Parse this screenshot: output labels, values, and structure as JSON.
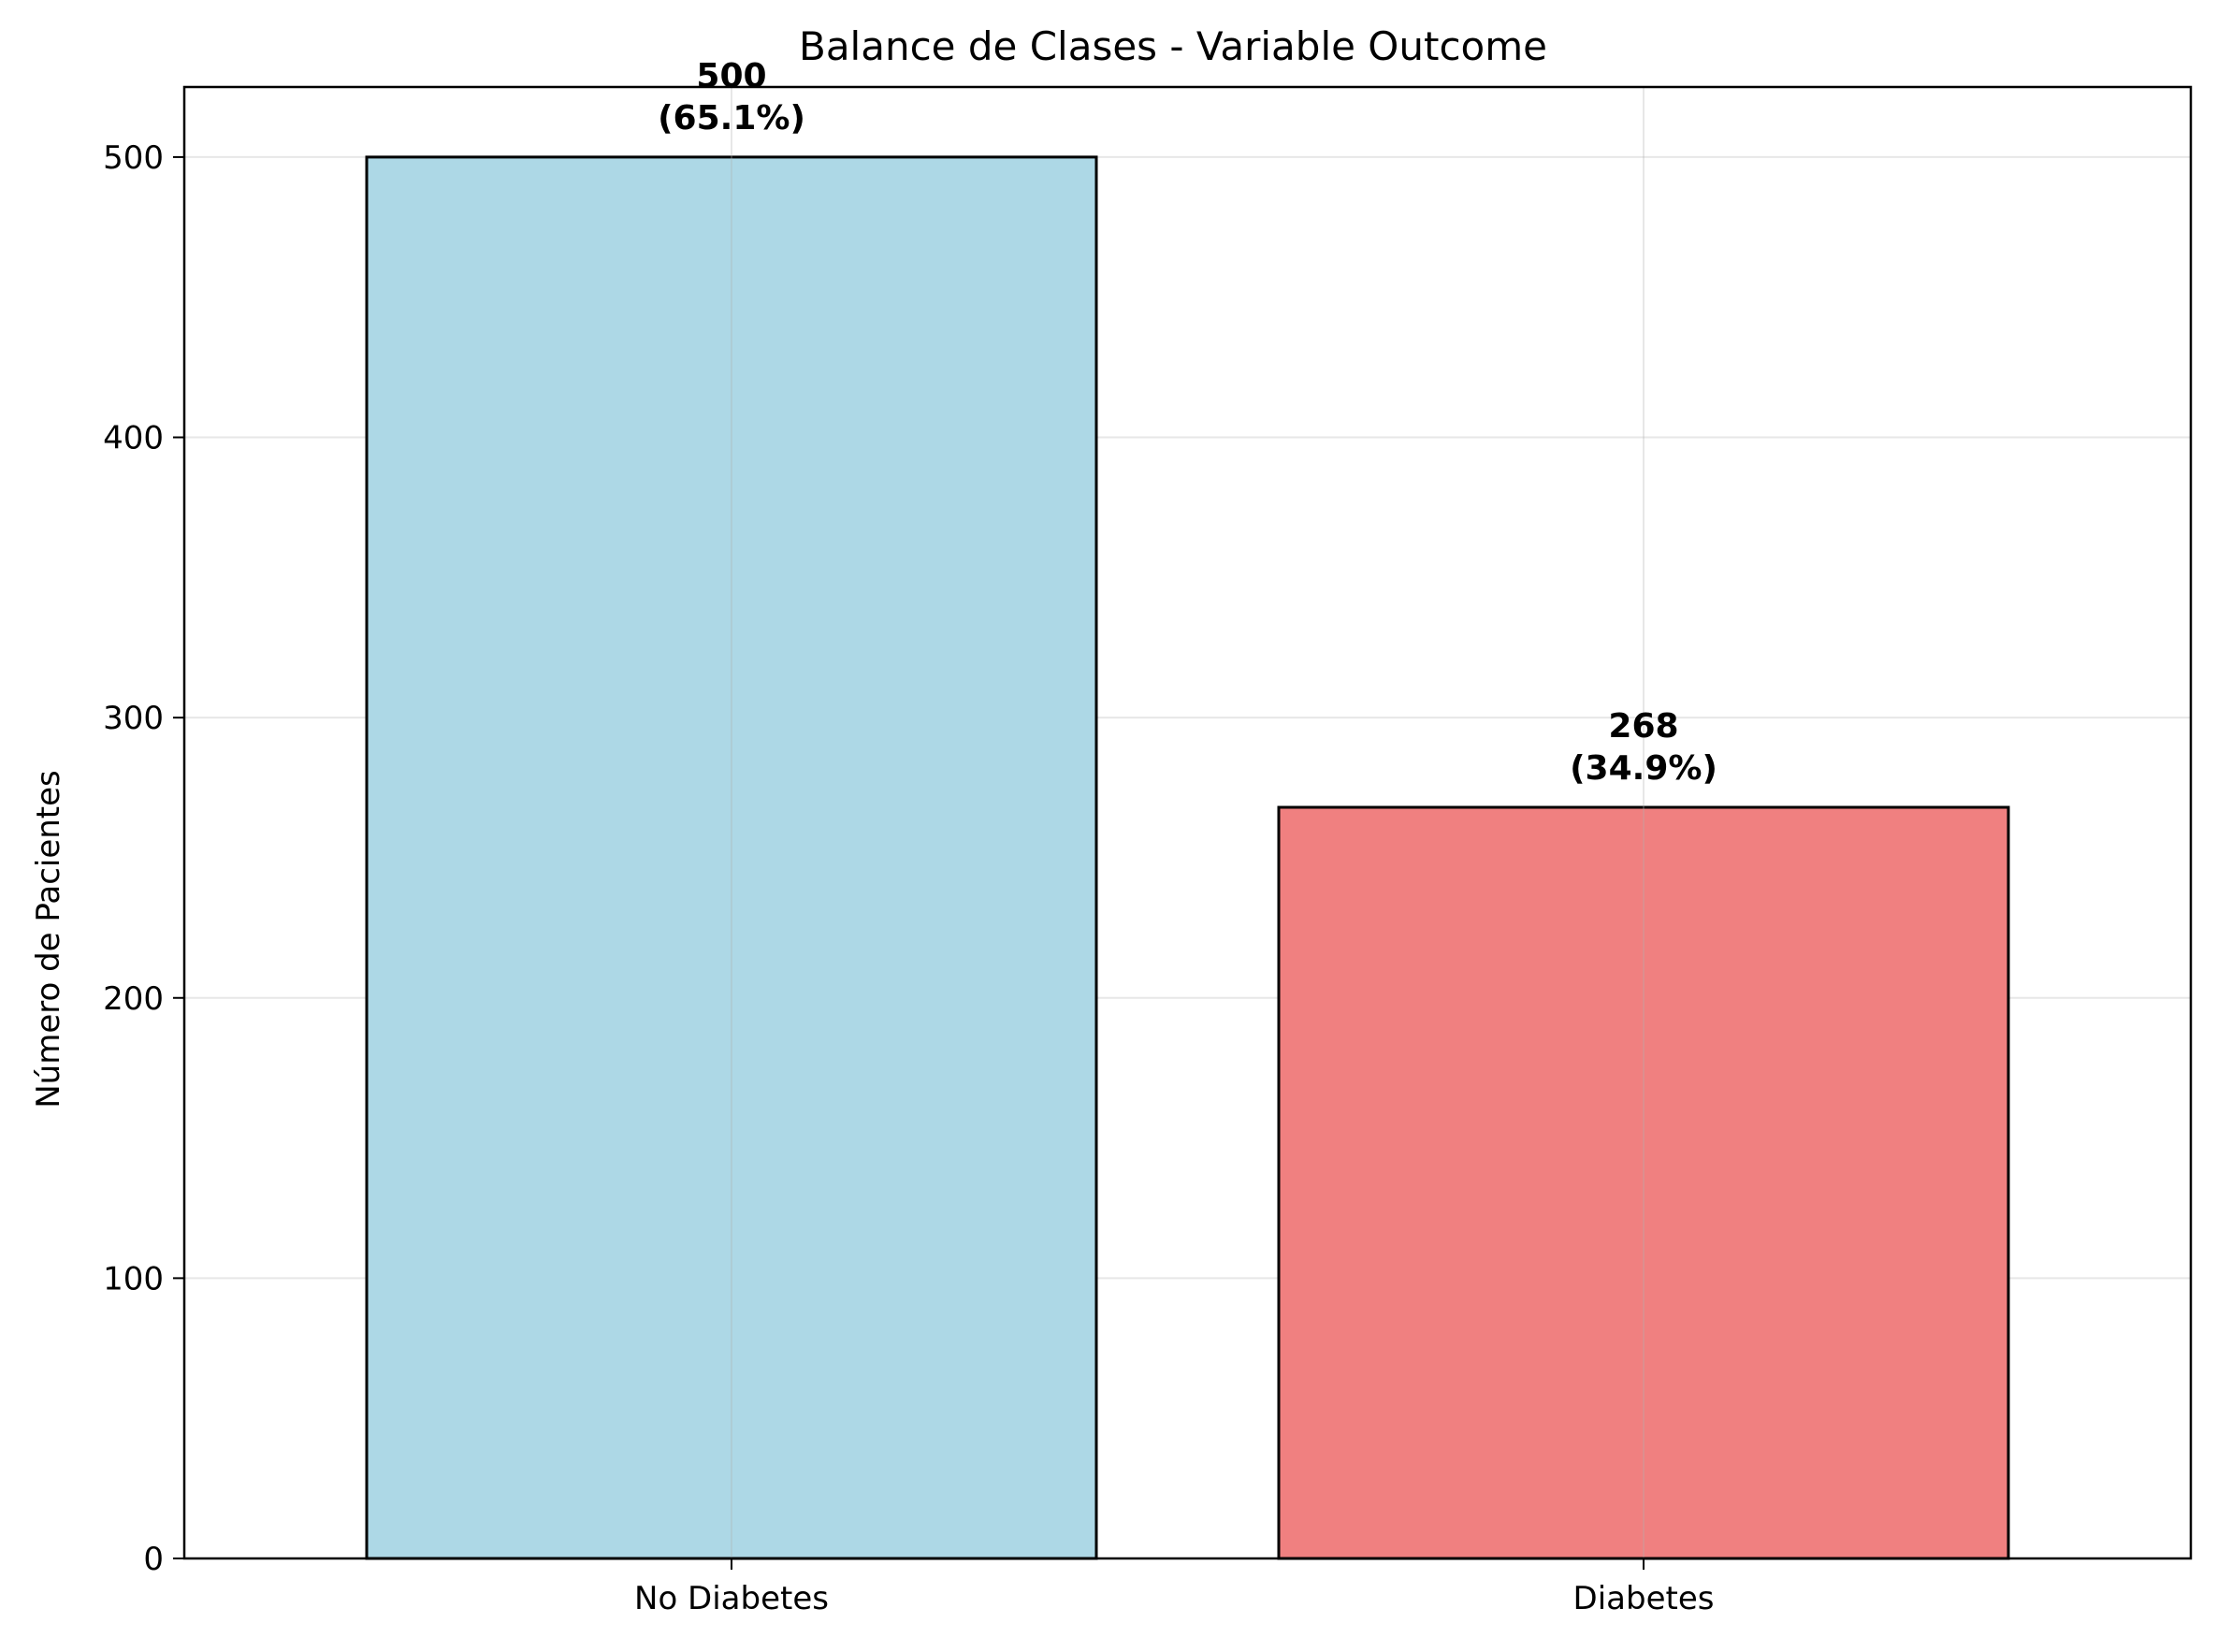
{
  "chart_data": {
    "type": "bar",
    "title": "Balance de Clases - Variable Outcome",
    "xlabel": "",
    "ylabel": "Número de Pacientes",
    "categories": [
      "No Diabetes",
      "Diabetes"
    ],
    "values": [
      500,
      268
    ],
    "value_labels": [
      "500",
      "268"
    ],
    "percent_labels": [
      "(65.1%)",
      "(34.9%)"
    ],
    "colors": [
      "#add8e6",
      "#f08080"
    ],
    "edge_color": "#000000",
    "ylim": [
      0,
      525
    ],
    "yticks": [
      0,
      100,
      200,
      300,
      400,
      500
    ],
    "ytick_labels": [
      "0",
      "100",
      "200",
      "300",
      "400",
      "500"
    ],
    "grid": true,
    "legend": "none"
  }
}
